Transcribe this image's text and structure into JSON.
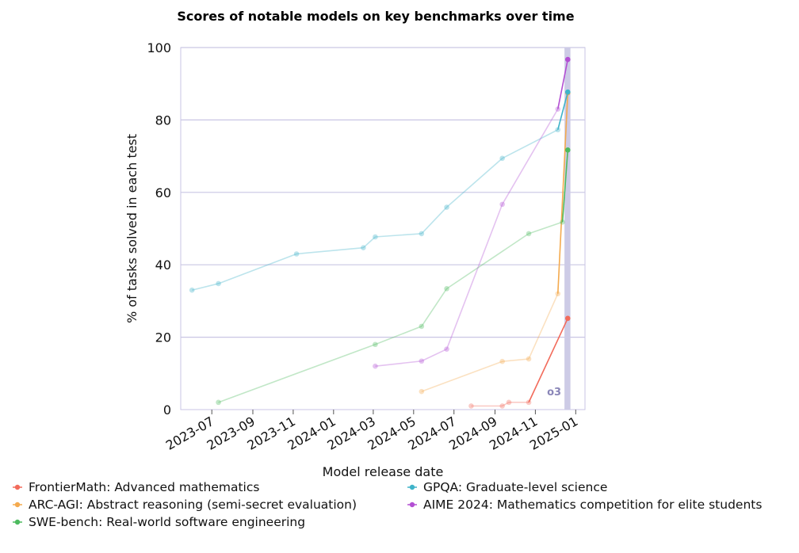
{
  "chart_data": {
    "type": "line",
    "title": "Scores of notable models on key benchmarks over time",
    "xlabel": "Model release date",
    "ylabel": "% of tasks solved in each test",
    "ylim": [
      0,
      100
    ],
    "xlim": [
      "2023-05-15",
      "2025-01-15"
    ],
    "yticks": [
      "0",
      "20",
      "40",
      "60",
      "80",
      "100"
    ],
    "xticks": [
      {
        "date": "2023-07-01",
        "label": "2023-07"
      },
      {
        "date": "2023-09-01",
        "label": "2023-09"
      },
      {
        "date": "2023-11-01",
        "label": "2023-11"
      },
      {
        "date": "2024-01-01",
        "label": "2024-01"
      },
      {
        "date": "2024-03-01",
        "label": "2024-03"
      },
      {
        "date": "2024-05-01",
        "label": "2024-05"
      },
      {
        "date": "2024-07-01",
        "label": "2024-07"
      },
      {
        "date": "2024-09-01",
        "label": "2024-09"
      },
      {
        "date": "2024-11-01",
        "label": "2024-11"
      },
      {
        "date": "2025-01-01",
        "label": "2025-01"
      }
    ],
    "grid": "horizontal",
    "legend_position": "bottom",
    "highlight": {
      "label": "o3",
      "start": "2024-12-15",
      "end": "2024-12-24",
      "color": "#cdcbe6"
    },
    "series": [
      {
        "name": "FrontierMath: Advanced mathematics",
        "color": "#f26b5b",
        "points": [
          {
            "x": "2024-07-27",
            "y": 1.0,
            "faded": true
          },
          {
            "x": "2024-09-12",
            "y": 1.0,
            "faded": true
          },
          {
            "x": "2024-09-22",
            "y": 2.0,
            "faded": true
          },
          {
            "x": "2024-10-22",
            "y": 2.0,
            "faded": true
          },
          {
            "x": "2024-12-20",
            "y": 25.2,
            "faded": false
          }
        ]
      },
      {
        "name": "ARC-AGI: Abstract reasoning (semi-secret evaluation)",
        "color": "#f4aa4e",
        "points": [
          {
            "x": "2024-05-13",
            "y": 5.0,
            "faded": true
          },
          {
            "x": "2024-09-12",
            "y": 13.3,
            "faded": true
          },
          {
            "x": "2024-10-22",
            "y": 14.0,
            "faded": true
          },
          {
            "x": "2024-12-05",
            "y": 32.0,
            "faded": true
          },
          {
            "x": "2024-12-20",
            "y": 87.5,
            "faded": false
          }
        ]
      },
      {
        "name": "SWE-bench: Real-world software engineering",
        "color": "#4dba5f",
        "points": [
          {
            "x": "2023-07-11",
            "y": 2.0,
            "faded": true
          },
          {
            "x": "2024-03-04",
            "y": 18.0,
            "faded": true
          },
          {
            "x": "2024-05-13",
            "y": 23.0,
            "faded": true
          },
          {
            "x": "2024-06-20",
            "y": 33.4,
            "faded": true
          },
          {
            "x": "2024-10-22",
            "y": 48.6,
            "faded": true
          },
          {
            "x": "2024-12-12",
            "y": 51.8,
            "faded": true
          },
          {
            "x": "2024-12-20",
            "y": 71.7,
            "faded": false
          }
        ]
      },
      {
        "name": "GPQA: Graduate-level science",
        "color": "#3fb3c9",
        "points": [
          {
            "x": "2023-06-01",
            "y": 33.0,
            "faded": true
          },
          {
            "x": "2023-07-11",
            "y": 34.8,
            "faded": true
          },
          {
            "x": "2023-11-06",
            "y": 43.0,
            "faded": true
          },
          {
            "x": "2024-02-15",
            "y": 44.7,
            "faded": true
          },
          {
            "x": "2024-03-04",
            "y": 47.7,
            "faded": true
          },
          {
            "x": "2024-05-13",
            "y": 48.6,
            "faded": true
          },
          {
            "x": "2024-06-20",
            "y": 55.9,
            "faded": true
          },
          {
            "x": "2024-09-12",
            "y": 69.4,
            "faded": true
          },
          {
            "x": "2024-12-05",
            "y": 77.3,
            "faded": true
          },
          {
            "x": "2024-12-20",
            "y": 87.7,
            "faded": false
          }
        ]
      },
      {
        "name": "AIME 2024: Mathematics competition for elite students",
        "color": "#b34fd3",
        "points": [
          {
            "x": "2024-03-04",
            "y": 12.0,
            "faded": true
          },
          {
            "x": "2024-05-13",
            "y": 13.4,
            "faded": true
          },
          {
            "x": "2024-06-20",
            "y": 16.7,
            "faded": true
          },
          {
            "x": "2024-09-12",
            "y": 56.7,
            "faded": true
          },
          {
            "x": "2024-12-05",
            "y": 83.0,
            "faded": true
          },
          {
            "x": "2024-12-20",
            "y": 96.7,
            "faded": false
          }
        ]
      }
    ],
    "legend": [
      "FrontierMath: Advanced mathematics",
      "ARC-AGI: Abstract reasoning (semi-secret evaluation)",
      "SWE-bench: Real-world software engineering",
      "GPQA: Graduate-level science",
      "AIME 2024: Mathematics competition for elite students"
    ]
  }
}
